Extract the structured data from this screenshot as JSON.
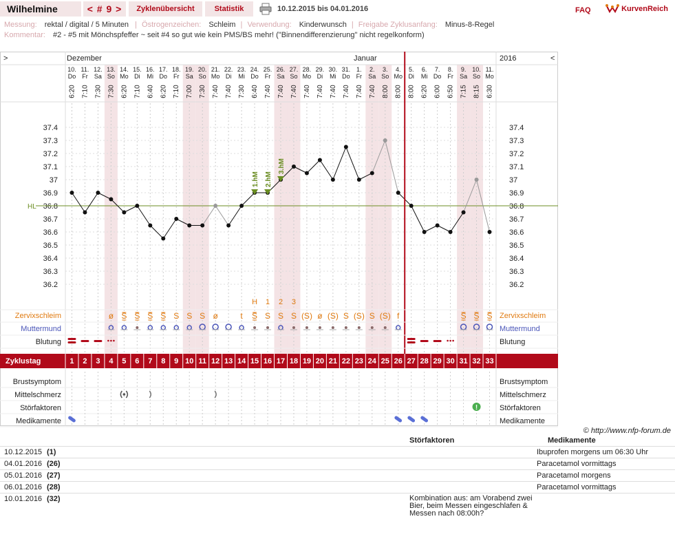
{
  "topbar": {
    "name": "Wilhelmine",
    "cycle_nav": "< # 9 >",
    "overview": "Zyklenübersicht",
    "stats": "Statistik",
    "range": "10.12.2015 bis 04.01.2016",
    "faq": "FAQ",
    "logo": "KurvenReich"
  },
  "info": {
    "messung_k": "Messung:",
    "messung_v": "rektal / digital / 5 Minuten",
    "oestro_k": "Östrogenzeichen:",
    "oestro_v": "Schleim",
    "verw_k": "Verwendung:",
    "verw_v": "Kinderwunsch",
    "freig_k": "Freigabe Zyklusanfang:",
    "freig_v": "Minus-8-Regel",
    "komm_k": "Kommentar:",
    "komm_v": "#2 - #5 mit Mönchspfeffer ~ seit #4 so gut wie kein PMS/BS mehr! (\"Binnendifferenzierung\" nicht regelkonform)"
  },
  "colors": {
    "accent": "#b10a1a",
    "shade": "#f4e3e5",
    "grid": "#e3cfd1",
    "coverline": "#6b8e23",
    "cervix": "#e07a10",
    "muttermund": "#4a55b8"
  },
  "chart_data": {
    "type": "line",
    "month_labels": {
      "left": "Dezember",
      "mid": "Januar",
      "right": "2016",
      "nav_left": ">",
      "nav_right": "<"
    },
    "days": [
      {
        "d": "10.",
        "w": "Do",
        "t": "6:20",
        "temp": 36.9,
        "ex": false
      },
      {
        "d": "11.",
        "w": "Fr",
        "t": "7:10",
        "temp": 36.75,
        "ex": false
      },
      {
        "d": "12.",
        "w": "Sa",
        "t": "7:30",
        "temp": 36.9,
        "ex": false
      },
      {
        "d": "13.",
        "w": "So",
        "t": "7:30",
        "temp": 36.85,
        "ex": false
      },
      {
        "d": "14.",
        "w": "Mo",
        "t": "6:20",
        "temp": 36.75,
        "ex": false
      },
      {
        "d": "15.",
        "w": "Di",
        "t": "7:10",
        "temp": 36.8,
        "ex": false
      },
      {
        "d": "16.",
        "w": "Mi",
        "t": "6:40",
        "temp": 36.65,
        "ex": false
      },
      {
        "d": "17.",
        "w": "Do",
        "t": "6:20",
        "temp": 36.55,
        "ex": false
      },
      {
        "d": "18.",
        "w": "Fr",
        "t": "7:10",
        "temp": 36.7,
        "ex": false
      },
      {
        "d": "19.",
        "w": "Sa",
        "t": "7:00",
        "temp": 36.65,
        "ex": false
      },
      {
        "d": "20.",
        "w": "So",
        "t": "7:30",
        "temp": 36.65,
        "ex": false
      },
      {
        "d": "21.",
        "w": "Mo",
        "t": "7:40",
        "temp": 36.8,
        "ex": true
      },
      {
        "d": "22.",
        "w": "Di",
        "t": "7:40",
        "temp": 36.65,
        "ex": false
      },
      {
        "d": "23.",
        "w": "Mi",
        "t": "7:30",
        "temp": 36.8,
        "ex": false
      },
      {
        "d": "24.",
        "w": "Do",
        "t": "6:40",
        "temp": 36.9,
        "ex": false
      },
      {
        "d": "25.",
        "w": "Fr",
        "t": "7:40",
        "temp": 36.9,
        "ex": false
      },
      {
        "d": "26.",
        "w": "Sa",
        "t": "7:40",
        "temp": 37.0,
        "ex": false
      },
      {
        "d": "27.",
        "w": "So",
        "t": "7:40",
        "temp": 37.1,
        "ex": false
      },
      {
        "d": "28.",
        "w": "Mo",
        "t": "7:40",
        "temp": 37.05,
        "ex": false
      },
      {
        "d": "29.",
        "w": "Di",
        "t": "7:40",
        "temp": 37.15,
        "ex": false
      },
      {
        "d": "30.",
        "w": "Mi",
        "t": "7:40",
        "temp": 37.0,
        "ex": false
      },
      {
        "d": "31.",
        "w": "Do",
        "t": "7:40",
        "temp": 37.25,
        "ex": false
      },
      {
        "d": "1.",
        "w": "Fr",
        "t": "7:40",
        "temp": 37.0,
        "ex": false
      },
      {
        "d": "2.",
        "w": "Sa",
        "t": "7:40",
        "temp": 37.05,
        "ex": false
      },
      {
        "d": "3.",
        "w": "So",
        "t": "8:00",
        "temp": 37.3,
        "ex": true
      },
      {
        "d": "4.",
        "w": "Mo",
        "t": "8:00",
        "temp": 36.9,
        "ex": false
      },
      {
        "d": "5.",
        "w": "Di",
        "t": "8:00",
        "temp": 36.8,
        "ex": false
      },
      {
        "d": "6.",
        "w": "Mi",
        "t": "6:20",
        "temp": 36.6,
        "ex": false
      },
      {
        "d": "7.",
        "w": "Do",
        "t": "6:00",
        "temp": 36.65,
        "ex": false
      },
      {
        "d": "8.",
        "w": "Fr",
        "t": "6:50",
        "temp": 36.6,
        "ex": false
      },
      {
        "d": "9.",
        "w": "Sa",
        "t": "7:15",
        "temp": 36.75,
        "ex": false
      },
      {
        "d": "10.",
        "w": "So",
        "t": "8:15",
        "temp": 37.0,
        "ex": true
      },
      {
        "d": "11.",
        "w": "Mo",
        "t": "6:30",
        "temp": 36.6,
        "ex": false
      }
    ],
    "shaded_days": [
      3,
      9,
      10,
      16,
      17,
      23,
      24,
      30,
      31
    ],
    "y_ticks": [
      37.4,
      37.3,
      37.2,
      37.1,
      37.0,
      36.9,
      36.8,
      36.7,
      36.6,
      36.5,
      36.4,
      36.3,
      36.2
    ],
    "y_tick_labels": [
      "37.4",
      "37.3",
      "37.2",
      "37.1",
      "37",
      "36.9",
      "36.8",
      "36.7",
      "36.6",
      "36.5",
      "36.4",
      "36.3",
      "36.2"
    ],
    "ylim": [
      36.15,
      37.5
    ],
    "coverline": 36.8,
    "coverline_label": "HL",
    "high_markers": [
      {
        "i": 14,
        "label": "1.hM"
      },
      {
        "i": 15,
        "label": "2.hM"
      },
      {
        "i": 16,
        "label": "3.hM"
      }
    ],
    "cycle_end_after_index": 25,
    "mucus_peak": [
      {
        "i": 14,
        "l": "H"
      },
      {
        "i": 15,
        "l": "1"
      },
      {
        "i": 16,
        "l": "2"
      },
      {
        "i": 17,
        "l": "3"
      }
    ],
    "zervix": [
      "",
      "",
      "",
      "ø",
      "S̲",
      "S̲",
      "S̲",
      "S̲",
      "S",
      "S",
      "S",
      "ø",
      "",
      "t",
      "S̲",
      "S",
      "S",
      "S",
      "(S)",
      "ø",
      "(S)",
      "S",
      "(S)",
      "S",
      "(S)",
      "f",
      "",
      "",
      "",
      "",
      "S̲",
      "S̲",
      "S̲"
    ],
    "muttermund": [
      "",
      "",
      "",
      "o",
      "o",
      "•",
      "o",
      "o",
      "o",
      "o",
      "O",
      "O",
      "O",
      "o",
      "•",
      "•",
      "o",
      "•",
      "•",
      "•",
      "•",
      "•",
      "•",
      "•",
      "•",
      "o",
      "",
      "",
      "",
      "",
      "O",
      "O",
      "O"
    ],
    "blutung": [
      3,
      2,
      2,
      1,
      0,
      0,
      0,
      0,
      0,
      0,
      0,
      0,
      0,
      0,
      0,
      0,
      0,
      0,
      0,
      0,
      0,
      0,
      0,
      0,
      0,
      0,
      3,
      2,
      2,
      1,
      0,
      0,
      0
    ],
    "zyklustag_label": "Zyklustag",
    "row_labels": {
      "zervix": "Zervixschleim",
      "muttermund": "Muttermund",
      "blutung": "Blutung",
      "brust": "Brustsymptom",
      "mittel": "Mittelschmerz",
      "stoer": "Störfaktoren",
      "medi": "Medikamente"
    },
    "mittelschmerz": [
      4,
      6,
      11
    ],
    "stoerfaktoren": [
      31
    ],
    "medikamente": [
      0,
      25,
      26,
      27
    ]
  },
  "copyright": "© http://www.nfp-forum.de",
  "notes": {
    "h_stoer": "Störfaktoren",
    "h_medi": "Medikamente",
    "rows": [
      {
        "date": "10.12.2015",
        "day": "(1)",
        "stoer": "",
        "medi": "Ibuprofen morgens um 06:30 Uhr"
      },
      {
        "date": "04.01.2016",
        "day": "(26)",
        "stoer": "",
        "medi": "Paracetamol vormittags"
      },
      {
        "date": "05.01.2016",
        "day": "(27)",
        "stoer": "",
        "medi": "Paracetamol morgens"
      },
      {
        "date": "06.01.2016",
        "day": "(28)",
        "stoer": "",
        "medi": "Paracetamol vormittags"
      },
      {
        "date": "10.01.2016",
        "day": "(32)",
        "stoer": "Kombination aus: am Vorabend zwei Bier, beim Messen eingeschlafen & Messen nach 08:00h?",
        "medi": ""
      }
    ]
  }
}
